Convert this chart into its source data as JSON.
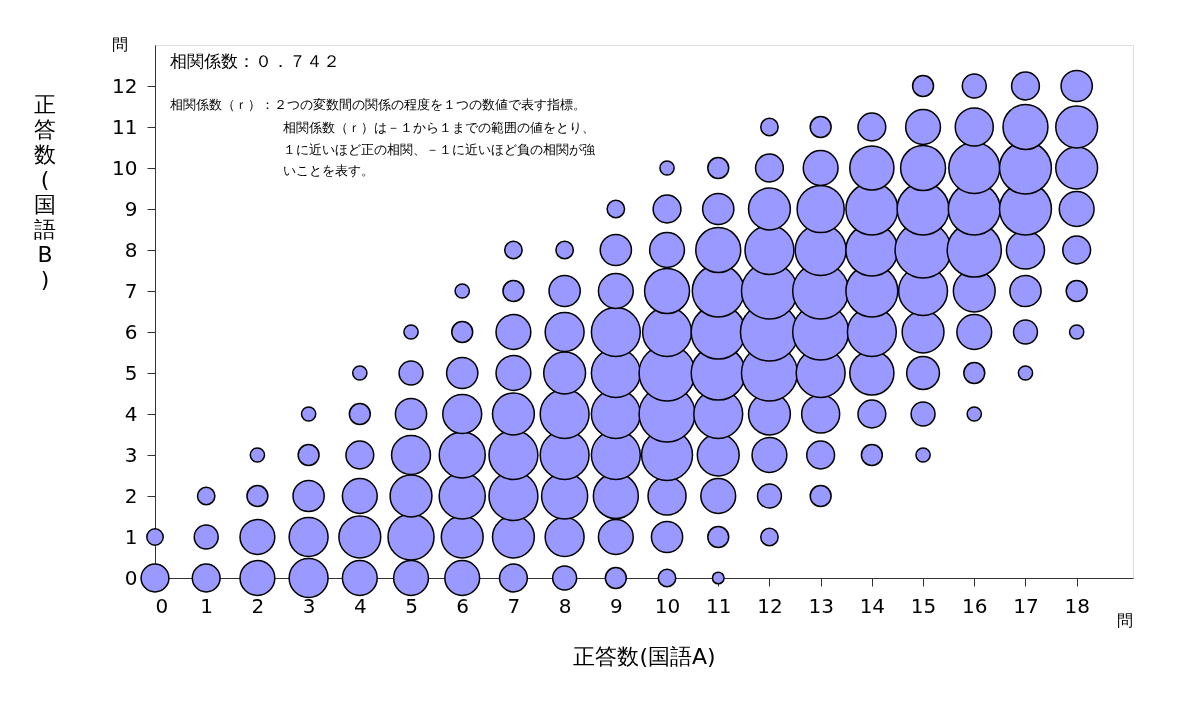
{
  "chart_data": {
    "type": "bubble",
    "xlabel": "正答数(国語A)",
    "ylabel": "正答数(国語B)",
    "annotations": [
      "問",
      "問",
      "相関係数：０．７４２",
      "相関係数（ｒ）：２つの変数間の関係の程度を１つの数値で表す指標。",
      "相関係数（ｒ）は－１から１までの範囲の値をとり、",
      "１に近いほど正の相関、－１に近いほど負の相関が強",
      "いことを表す。"
    ],
    "xlim": [
      0,
      19.1
    ],
    "xticks": [
      0,
      1,
      2,
      3,
      4,
      5,
      6,
      7,
      8,
      9,
      10,
      11,
      12,
      13,
      14,
      15,
      16,
      17,
      18
    ],
    "ylim": [
      0,
      13
    ],
    "yticks": [
      0,
      1,
      2,
      3,
      4,
      5,
      6,
      7,
      8,
      9,
      10,
      11,
      12
    ],
    "grid": false,
    "series": [
      {
        "color": "#9999ff",
        "x": [
          0,
          0,
          1,
          1,
          1,
          2,
          2,
          2,
          2,
          3,
          3,
          3,
          3,
          3,
          4,
          4,
          4,
          4,
          4,
          4,
          5,
          5,
          5,
          5,
          5,
          5,
          5,
          6,
          6,
          6,
          6,
          6,
          6,
          6,
          6,
          7,
          7,
          7,
          7,
          7,
          7,
          7,
          7,
          7,
          8,
          8,
          8,
          8,
          8,
          8,
          8,
          8,
          8,
          9,
          9,
          9,
          9,
          9,
          9,
          9,
          9,
          9,
          9,
          10,
          10,
          10,
          10,
          10,
          10,
          10,
          10,
          10,
          10,
          10,
          11,
          11,
          11,
          11,
          11,
          11,
          11,
          11,
          11,
          11,
          11,
          12,
          12,
          12,
          12,
          12,
          12,
          12,
          12,
          12,
          12,
          12,
          13,
          13,
          13,
          13,
          13,
          13,
          13,
          13,
          13,
          13,
          14,
          14,
          14,
          14,
          14,
          14,
          14,
          14,
          14,
          15,
          15,
          15,
          15,
          15,
          15,
          15,
          15,
          15,
          15,
          16,
          16,
          16,
          16,
          16,
          16,
          16,
          16,
          16,
          17,
          17,
          17,
          17,
          17,
          17,
          17,
          17,
          18,
          18,
          18,
          18,
          18,
          18,
          18
        ],
        "values": [
          0,
          1,
          0,
          1,
          2,
          0,
          1,
          2,
          3,
          0,
          1,
          2,
          3,
          4,
          0,
          1,
          2,
          3,
          4,
          5,
          0,
          1,
          2,
          3,
          4,
          5,
          6,
          0,
          1,
          2,
          3,
          4,
          5,
          6,
          7,
          0,
          1,
          2,
          3,
          4,
          5,
          6,
          7,
          8,
          0,
          1,
          2,
          3,
          4,
          5,
          6,
          7,
          8,
          0,
          1,
          2,
          3,
          4,
          5,
          6,
          7,
          8,
          9,
          0,
          1,
          2,
          3,
          4,
          5,
          6,
          7,
          8,
          9,
          10,
          0,
          1,
          2,
          3,
          4,
          5,
          6,
          7,
          8,
          9,
          10,
          1,
          2,
          3,
          4,
          5,
          6,
          7,
          8,
          9,
          10,
          11,
          2,
          3,
          4,
          5,
          6,
          7,
          8,
          9,
          10,
          11,
          3,
          4,
          5,
          6,
          7,
          8,
          9,
          10,
          11,
          3,
          4,
          5,
          6,
          7,
          8,
          9,
          10,
          11,
          12,
          4,
          5,
          6,
          7,
          8,
          9,
          10,
          11,
          12,
          5,
          6,
          7,
          8,
          9,
          10,
          11,
          12,
          6,
          7,
          8,
          9,
          10,
          11,
          12
        ],
        "sizes": [
          0.23,
          0.08,
          0.23,
          0.17,
          0.09,
          0.36,
          0.36,
          0.13,
          0.06,
          0.45,
          0.45,
          0.29,
          0.13,
          0.06,
          0.36,
          0.52,
          0.36,
          0.23,
          0.13,
          0.06,
          0.36,
          0.63,
          0.52,
          0.45,
          0.29,
          0.17,
          0.06,
          0.36,
          0.52,
          0.63,
          0.63,
          0.45,
          0.29,
          0.13,
          0.06,
          0.23,
          0.52,
          0.71,
          0.71,
          0.52,
          0.36,
          0.36,
          0.13,
          0.09,
          0.17,
          0.45,
          0.63,
          0.71,
          0.71,
          0.52,
          0.45,
          0.29,
          0.09,
          0.13,
          0.36,
          0.6,
          0.71,
          0.71,
          0.71,
          0.71,
          0.36,
          0.29,
          0.09,
          0.09,
          0.29,
          0.43,
          0.77,
          0.93,
          0.93,
          0.71,
          0.6,
          0.36,
          0.23,
          0.06,
          0.04,
          0.13,
          0.36,
          0.52,
          0.71,
          0.87,
          0.87,
          0.8,
          0.6,
          0.29,
          0.13,
          0.09,
          0.17,
          0.36,
          0.52,
          0.93,
          1,
          0.93,
          0.71,
          0.52,
          0.23,
          0.09,
          0.13,
          0.23,
          0.43,
          0.71,
          0.93,
          0.93,
          0.77,
          0.66,
          0.36,
          0.13,
          0.13,
          0.23,
          0.58,
          0.71,
          0.8,
          0.8,
          0.8,
          0.58,
          0.23,
          0.06,
          0.17,
          0.32,
          0.52,
          0.71,
          0.93,
          0.8,
          0.6,
          0.36,
          0.13,
          0.06,
          0.13,
          0.36,
          0.52,
          0.87,
          0.8,
          0.77,
          0.43,
          0.17,
          0.06,
          0.17,
          0.29,
          0.43,
          0.8,
          0.8,
          0.6,
          0.23,
          0.06,
          0.13,
          0.23,
          0.36,
          0.52,
          0.52,
          0.29
        ]
      }
    ]
  }
}
